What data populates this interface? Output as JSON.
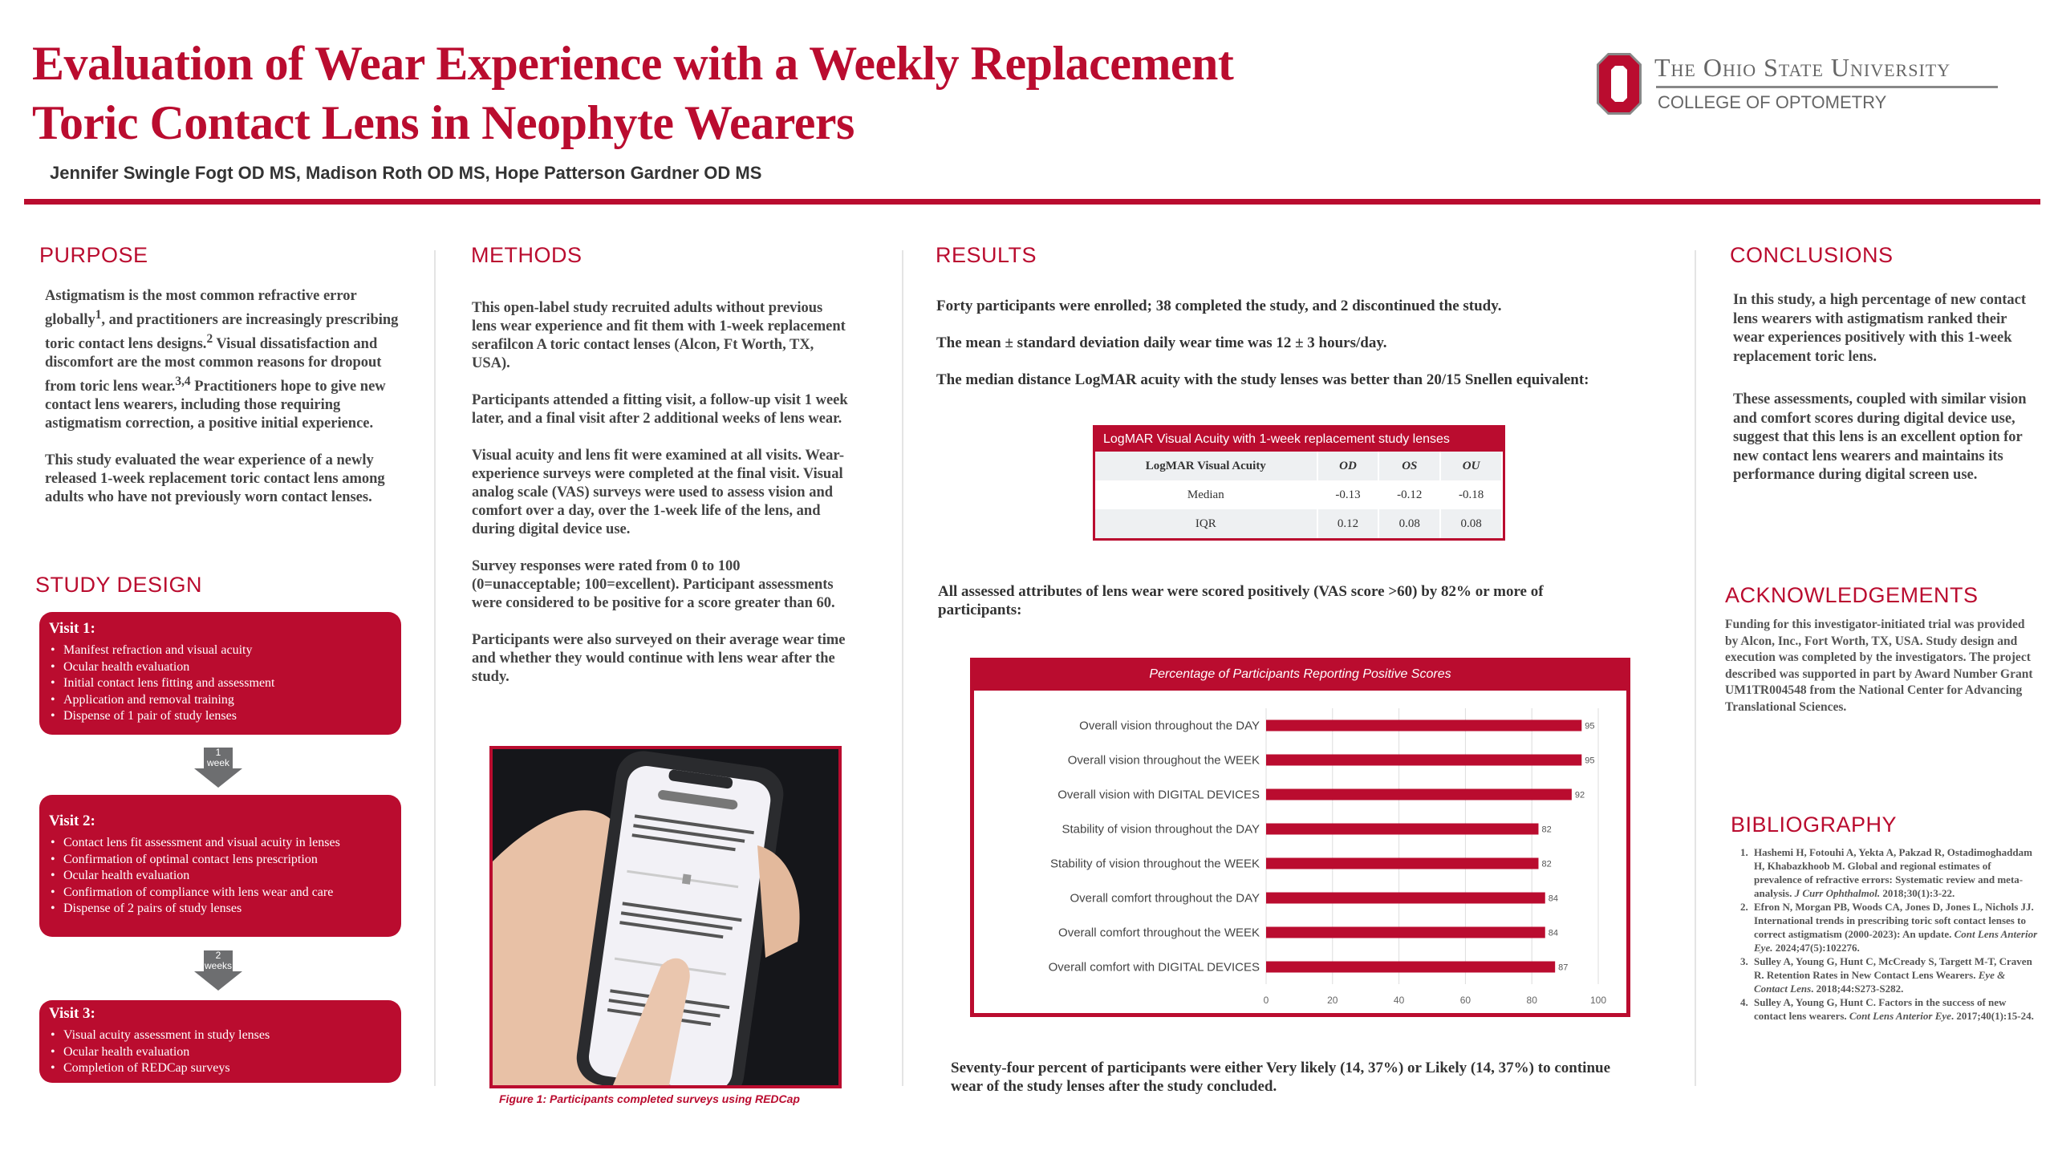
{
  "header": {
    "title_line1": "Evaluation of Wear Experience with a Weekly Replacement",
    "title_line2": "Toric Contact Lens in Neophyte Wearers",
    "authors": "Jennifer Swingle Fogt OD MS,  Madison Roth OD MS,  Hope Patterson Gardner OD MS",
    "logo_university": "The Ohio State University",
    "logo_college": "COLLEGE OF OPTOMETRY"
  },
  "colors": {
    "accent": "#ba0c2f",
    "arrow": "#6d6e70",
    "text": "#444444"
  },
  "purpose": {
    "heading": "PURPOSE",
    "p1a": "Astigmatism is the most common refractive error globally",
    "p1b": ", and practitioners are increasingly prescribing toric contact lens designs.",
    "p1c": " Visual dissatisfaction and discomfort are the most common reasons for dropout from toric lens wear.",
    "p1d": "  Practitioners hope to give new contact lens wearers, including those requiring astigmatism correction, a positive initial experience.",
    "sup1": "1",
    "sup2": "2",
    "sup3": "3,4",
    "p2": "This study evaluated the wear experience of a newly released 1-week replacement toric contact lens among adults who have not previously worn contact lenses."
  },
  "study_design": {
    "heading": "STUDY DESIGN",
    "visits": [
      {
        "title": "Visit 1:",
        "items": [
          "Manifest refraction and visual acuity",
          "Ocular health evaluation",
          "Initial contact lens fitting and assessment",
          "Application and removal training",
          "Dispense of 1 pair of study lenses"
        ]
      },
      {
        "title": "Visit 2:",
        "items": [
          "Contact lens fit assessment and visual acuity in lenses",
          "Confirmation of optimal contact lens prescription",
          "Ocular health evaluation",
          "Confirmation of compliance with lens wear and care",
          "Dispense of 2 pairs of study lenses"
        ]
      },
      {
        "title": "Visit 3:",
        "items": [
          "Visual acuity assessment in study lenses",
          "Ocular health evaluation",
          "Completion of REDCap surveys"
        ]
      }
    ],
    "arrows": [
      {
        "num": "1",
        "unit": "week"
      },
      {
        "num": "2",
        "unit": "weeks"
      }
    ]
  },
  "methods": {
    "heading": "METHODS",
    "paragraphs": [
      "This open-label study recruited adults without previous lens wear experience and fit them with 1-week replacement serafilcon A toric contact lenses (Alcon, Ft Worth, TX, USA).",
      "Participants attended a fitting visit, a follow-up visit 1 week later, and a final visit after 2 additional weeks of lens wear.",
      "Visual acuity and lens fit were examined at all visits. Wear-experience surveys were completed at the final visit. Visual analog scale (VAS) surveys were used to assess vision and comfort over a day, over the 1-week life of the lens, and during digital device use.",
      "Survey responses were rated from 0 to 100 (0=unacceptable; 100=excellent). Participant assessments were considered to be positive for a score greater than 60.",
      "Participants were also surveyed on their average wear time and whether they would continue with lens wear after the study."
    ],
    "figure_caption": "Figure 1: Participants completed surveys using REDCap"
  },
  "results": {
    "heading": "RESULTS",
    "line1": "Forty participants were enrolled; 38 completed the study, and 2 discontinued the study.",
    "line2": "The mean ± standard deviation daily wear time was 12 ± 3 hours/day.",
    "line3": "The median distance LogMAR acuity with the study lenses was better than 20/15 Snellen equivalent:",
    "table": {
      "title": "LogMAR Visual Acuity with 1-week replacement study lenses",
      "headers": [
        "LogMAR Visual Acuity",
        "OD",
        "OS",
        "OU"
      ],
      "rows": [
        [
          "Median",
          "-0.13",
          "-0.12",
          "-0.18"
        ],
        [
          "IQR",
          "0.12",
          "0.08",
          "0.08"
        ]
      ]
    },
    "line4": "All assessed attributes of lens wear were scored positively (VAS score >60) by 82% or more of participants:",
    "line5": "Seventy-four percent of participants were either Very likely (14, 37%) or Likely (14, 37%) to continue wear of the study lenses after the study concluded."
  },
  "chart_data": {
    "type": "bar",
    "orientation": "horizontal",
    "title": "Percentage of Participants Reporting Positive Scores",
    "categories": [
      "Overall vision throughout the DAY",
      "Overall vision throughout the WEEK",
      "Overall vision with DIGITAL DEVICES",
      "Stability of vision throughout the DAY",
      "Stability of vision throughout the WEEK",
      "Overall comfort throughout the DAY",
      "Overall comfort throughout the WEEK",
      "Overall comfort with DIGITAL DEVICES"
    ],
    "values": [
      95,
      95,
      92,
      82,
      82,
      84,
      84,
      87
    ],
    "xlim": [
      0,
      100
    ],
    "xticks": [
      0,
      20,
      40,
      60,
      80,
      100
    ],
    "xlabel": "",
    "ylabel": "",
    "grid": true
  },
  "conclusions": {
    "heading": "CONCLUSIONS",
    "paragraphs": [
      "In this study, a high percentage of new contact lens wearers with astigmatism ranked their wear experiences positively with this 1-week replacement toric lens.",
      "These assessments, coupled with similar vision and comfort scores during digital device use, suggest that this lens is an excellent option for new contact lens wearers and maintains its performance during digital screen use."
    ]
  },
  "acknowledgements": {
    "heading": "ACKNOWLEDGEMENTS",
    "text": "Funding for this investigator-initiated trial was provided by Alcon, Inc., Fort Worth, TX, USA. Study design and execution was completed by the investigators. The project described was supported in part by Award Number Grant UM1TR004548 from the National Center for Advancing Translational Sciences."
  },
  "bibliography": {
    "heading": "BIBLIOGRAPHY",
    "items": [
      {
        "text": "Hashemi H, Fotouhi A, Yekta A, Pakzad R, Ostadimoghaddam H, Khabazkhoob M. Global and regional estimates of prevalence of refractive errors: Systematic review and meta-analysis. ",
        "journal": "J Curr Ophthalmol.",
        "cite": " 2018;30(1):3-22."
      },
      {
        "text": "Efron N, Morgan PB, Woods CA, Jones D, Jones L, Nichols JJ. International trends in prescribing toric soft contact lenses to correct astigmatism (2000-2023): An update. ",
        "journal": "Cont Lens Anterior Eye.",
        "cite": " 2024;47(5):102276."
      },
      {
        "text": "Sulley A, Young G, Hunt C, McCready S, Targett M-T, Craven R. Retention Rates in New Contact Lens Wearers. ",
        "journal": "Eye & Contact Lens",
        "cite": ". 2018;44:S273-S282."
      },
      {
        "text": "Sulley A, Young G, Hunt C. Factors in the success of new contact lens wearers. ",
        "journal": "Cont Lens Anterior Eye",
        "cite": ". 2017;40(1):15-24."
      }
    ]
  }
}
